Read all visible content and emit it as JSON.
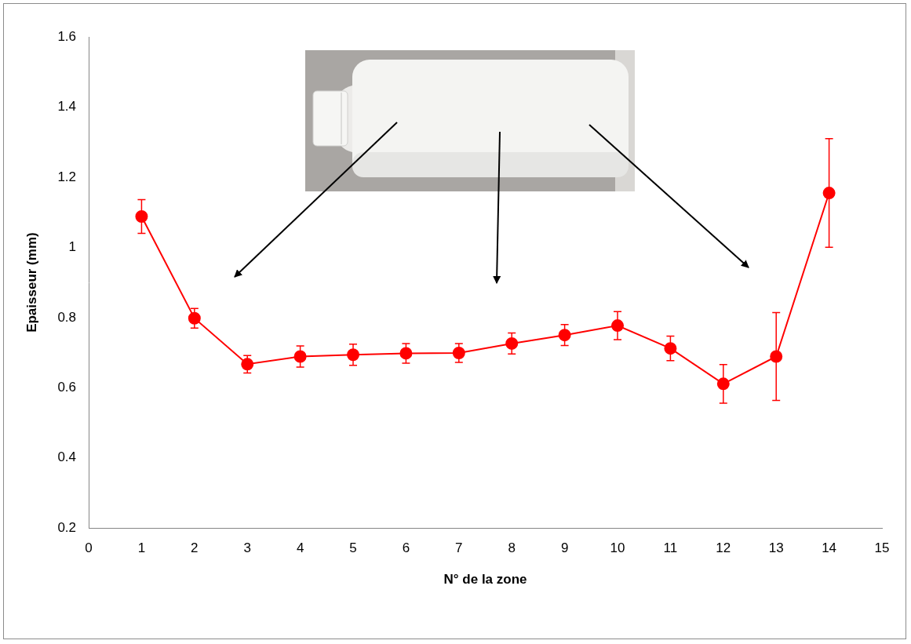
{
  "chart_data": {
    "type": "line",
    "xlabel": "N° de la zone",
    "ylabel": "Epaisseur (mm)",
    "x": [
      1,
      2,
      3,
      4,
      5,
      6,
      7,
      8,
      9,
      10,
      11,
      12,
      13,
      14
    ],
    "values": [
      1.088,
      0.798,
      0.667,
      0.689,
      0.694,
      0.698,
      0.699,
      0.726,
      0.75,
      0.777,
      0.712,
      0.611,
      0.689,
      1.155
    ],
    "errors": [
      0.048,
      0.028,
      0.025,
      0.03,
      0.03,
      0.028,
      0.027,
      0.03,
      0.03,
      0.04,
      0.035,
      0.055,
      0.125,
      0.155
    ],
    "color": "#ff0000",
    "marker": "circle",
    "line_style": "solid",
    "xlim": [
      0,
      15
    ],
    "xticks": [
      0,
      1,
      2,
      3,
      4,
      5,
      6,
      7,
      8,
      9,
      10,
      11,
      12,
      13,
      14,
      15
    ],
    "ylim": [
      0.2,
      1.6
    ],
    "yticks": [
      0.2,
      0.4,
      0.6,
      0.8,
      1,
      1.2,
      1.4,
      1.6
    ],
    "grid": false
  }
}
